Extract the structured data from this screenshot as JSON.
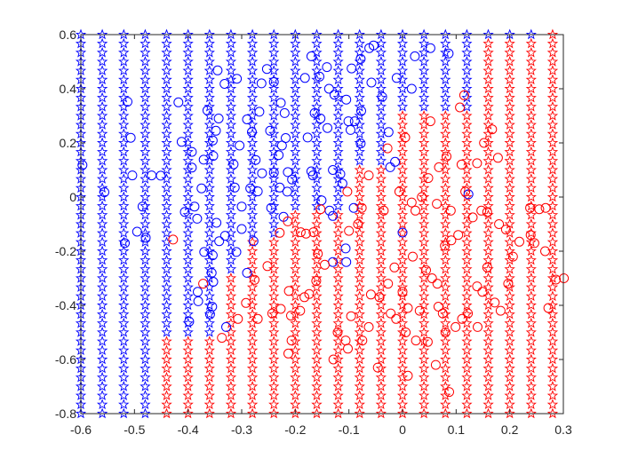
{
  "chart_data": {
    "type": "scatter",
    "title": "",
    "xlabel": "",
    "ylabel": "",
    "xlim": [
      -0.6,
      0.3
    ],
    "ylim": [
      -0.8,
      0.6
    ],
    "grid": false,
    "x_ticks": [
      "-0.6",
      "-0.5",
      "-0.4",
      "-0.3",
      "-0.2",
      "-0.1",
      "0",
      "0.1",
      "0.2",
      "0.3"
    ],
    "y_ticks": [
      "-0.8",
      "-0.6",
      "-0.4",
      "-0.2",
      "0",
      "0.2",
      "0.4",
      "0.6"
    ],
    "colors": {
      "blue": "#0000ff",
      "red": "#ff0000",
      "axis": "#262626"
    },
    "grid_stars": {
      "marker": "star",
      "x_start": -0.6,
      "x_step": 0.04,
      "x_count": 23,
      "y_start": -0.8,
      "y_step": 0.03333,
      "y_count": 43,
      "classes": [
        "blue",
        "red"
      ]
    },
    "samples": {
      "marker": "circle",
      "blue": [
        [
          -0.597,
          0.118
        ],
        [
          -0.513,
          0.352
        ],
        [
          -0.507,
          0.219
        ],
        [
          -0.504,
          0.08
        ],
        [
          -0.485,
          -0.035
        ],
        [
          -0.495,
          -0.128
        ],
        [
          -0.479,
          -0.15
        ],
        [
          -0.518,
          -0.17
        ],
        [
          -0.468,
          0.08
        ],
        [
          -0.451,
          0.079
        ],
        [
          -0.556,
          0.018
        ],
        [
          -0.418,
          0.35
        ],
        [
          -0.412,
          0.204
        ],
        [
          -0.393,
          0.167
        ],
        [
          -0.393,
          0.109
        ],
        [
          -0.388,
          -0.035
        ],
        [
          -0.406,
          -0.055
        ],
        [
          -0.383,
          -0.08
        ],
        [
          -0.375,
          0.032
        ],
        [
          -0.371,
          0.138
        ],
        [
          -0.364,
          0.32
        ],
        [
          -0.354,
          0.209
        ],
        [
          -0.353,
          0.152
        ],
        [
          -0.348,
          0.245
        ],
        [
          -0.343,
          0.29
        ],
        [
          -0.347,
          -0.095
        ],
        [
          -0.331,
          -0.143
        ],
        [
          -0.342,
          -0.163
        ],
        [
          -0.37,
          -0.203
        ],
        [
          -0.354,
          -0.215
        ],
        [
          -0.356,
          -0.28
        ],
        [
          -0.353,
          -0.313
        ],
        [
          -0.382,
          -0.35
        ],
        [
          -0.355,
          -0.405
        ],
        [
          -0.381,
          -0.385
        ],
        [
          -0.398,
          -0.46
        ],
        [
          -0.359,
          -0.433
        ],
        [
          -0.329,
          -0.48
        ],
        [
          -0.345,
          0.468
        ],
        [
          -0.332,
          0.418
        ],
        [
          -0.309,
          0.437
        ],
        [
          -0.29,
          0.287
        ],
        [
          -0.304,
          0.19
        ],
        [
          -0.315,
          0.121
        ],
        [
          -0.313,
          0.035
        ],
        [
          -0.3,
          -0.035
        ],
        [
          -0.3,
          -0.118
        ],
        [
          -0.31,
          -0.203
        ],
        [
          -0.29,
          -0.28
        ],
        [
          -0.278,
          -0.163
        ],
        [
          -0.262,
          0.088
        ],
        [
          -0.27,
          0.021
        ],
        [
          -0.284,
          0.032
        ],
        [
          -0.274,
          0.137
        ],
        [
          -0.281,
          0.24
        ],
        [
          -0.267,
          0.315
        ],
        [
          -0.263,
          0.42
        ],
        [
          -0.253,
          0.473
        ],
        [
          -0.24,
          0.425
        ],
        [
          -0.22,
          0.31
        ],
        [
          -0.227,
          0.348
        ],
        [
          -0.24,
          0.09
        ],
        [
          -0.229,
          0.035
        ],
        [
          -0.215,
          0.02
        ],
        [
          -0.206,
          0.065
        ],
        [
          -0.214,
          0.092
        ],
        [
          -0.218,
          0.218
        ],
        [
          -0.225,
          0.19
        ],
        [
          -0.247,
          0.245
        ],
        [
          -0.231,
          0.155
        ],
        [
          -0.245,
          -0.04
        ],
        [
          -0.222,
          -0.073
        ],
        [
          -0.177,
          0.22
        ],
        [
          -0.164,
          0.31
        ],
        [
          -0.182,
          0.44
        ],
        [
          -0.17,
          0.52
        ],
        [
          -0.155,
          0.445
        ],
        [
          -0.141,
          0.48
        ],
        [
          -0.137,
          0.4
        ],
        [
          -0.127,
          0.378
        ],
        [
          -0.153,
          0.29
        ],
        [
          -0.14,
          0.255
        ],
        [
          -0.13,
          0.1
        ],
        [
          -0.151,
          -0.012
        ],
        [
          -0.136,
          -0.05
        ],
        [
          -0.167,
          0.08
        ],
        [
          -0.17,
          0.095
        ],
        [
          -0.116,
          0.085
        ],
        [
          -0.112,
          0.05
        ],
        [
          -0.097,
          0.248
        ],
        [
          -0.101,
          0.28
        ],
        [
          -0.077,
          0.318
        ],
        [
          -0.089,
          0.28
        ],
        [
          -0.078,
          0.198
        ],
        [
          -0.105,
          0.36
        ],
        [
          -0.095,
          0.475
        ],
        [
          -0.078,
          0.51
        ],
        [
          -0.062,
          0.55
        ],
        [
          -0.054,
          0.56
        ],
        [
          -0.058,
          0.423
        ],
        [
          -0.038,
          0.37
        ],
        [
          -0.023,
          0.11
        ],
        [
          -0.026,
          0.24
        ],
        [
          -0.014,
          0.13
        ],
        [
          0.0,
          -0.131
        ],
        [
          -0.011,
          0.44
        ],
        [
          0.017,
          0.4
        ],
        [
          0.023,
          0.52
        ],
        [
          0.052,
          0.55
        ],
        [
          0.086,
          0.53
        ],
        [
          0.123,
          0.01
        ],
        [
          -0.13,
          -0.24
        ],
        [
          -0.105,
          -0.24
        ],
        [
          -0.106,
          -0.19
        ],
        [
          -0.091,
          -0.04
        ],
        [
          -0.13,
          -0.07
        ]
      ],
      "red": [
        [
          -0.428,
          -0.157
        ],
        [
          -0.372,
          -0.32
        ],
        [
          -0.337,
          -0.52
        ],
        [
          -0.307,
          -0.45
        ],
        [
          -0.292,
          -0.391
        ],
        [
          -0.276,
          -0.306
        ],
        [
          -0.27,
          -0.45
        ],
        [
          -0.252,
          -0.255
        ],
        [
          -0.243,
          -0.43
        ],
        [
          -0.227,
          -0.413
        ],
        [
          -0.212,
          -0.347
        ],
        [
          -0.208,
          -0.438
        ],
        [
          -0.207,
          -0.53
        ],
        [
          -0.213,
          -0.578
        ],
        [
          -0.229,
          -0.132
        ],
        [
          -0.191,
          -0.42
        ],
        [
          -0.174,
          -0.358
        ],
        [
          -0.183,
          -0.37
        ],
        [
          -0.161,
          -0.31
        ],
        [
          -0.158,
          -0.21
        ],
        [
          -0.166,
          -0.13
        ],
        [
          -0.145,
          -0.25
        ],
        [
          -0.129,
          -0.6
        ],
        [
          -0.121,
          -0.5
        ],
        [
          -0.102,
          -0.56
        ],
        [
          -0.106,
          -0.53
        ],
        [
          -0.096,
          -0.44
        ],
        [
          -0.075,
          -0.53
        ],
        [
          -0.063,
          -0.48
        ],
        [
          -0.059,
          -0.36
        ],
        [
          -0.043,
          -0.37
        ],
        [
          -0.027,
          -0.32
        ],
        [
          -0.022,
          -0.43
        ],
        [
          0.01,
          -0.41
        ],
        [
          0.006,
          -0.5
        ],
        [
          0.019,
          -0.22
        ],
        [
          0.032,
          -0.42
        ],
        [
          0.044,
          -0.27
        ],
        [
          0.055,
          -0.3
        ],
        [
          0.065,
          -0.32
        ],
        [
          0.075,
          -0.43
        ],
        [
          0.08,
          -0.5
        ],
        [
          0.099,
          -0.48
        ],
        [
          0.111,
          -0.45
        ],
        [
          0.122,
          -0.43
        ],
        [
          0.139,
          -0.33
        ],
        [
          0.149,
          -0.35
        ],
        [
          0.158,
          -0.26
        ],
        [
          0.172,
          -0.39
        ],
        [
          0.183,
          -0.42
        ],
        [
          0.197,
          -0.32
        ],
        [
          0.206,
          -0.22
        ],
        [
          0.218,
          -0.165
        ],
        [
          0.239,
          -0.14
        ],
        [
          0.246,
          -0.17
        ],
        [
          0.266,
          -0.2
        ],
        [
          0.286,
          -0.305
        ],
        [
          0.301,
          -0.3
        ],
        [
          0.272,
          -0.41
        ],
        [
          0.267,
          -0.04
        ],
        [
          0.255,
          -0.045
        ],
        [
          0.238,
          -0.04
        ],
        [
          0.193,
          -0.12
        ],
        [
          0.18,
          -0.1
        ],
        [
          0.158,
          -0.055
        ],
        [
          0.147,
          -0.05
        ],
        [
          0.131,
          -0.075
        ],
        [
          0.117,
          0.02
        ],
        [
          0.11,
          0.12
        ],
        [
          0.139,
          0.125
        ],
        [
          0.152,
          0.2
        ],
        [
          0.178,
          0.145
        ],
        [
          0.167,
          0.25
        ],
        [
          0.115,
          0.376
        ],
        [
          0.107,
          0.331
        ],
        [
          0.082,
          0.15
        ],
        [
          0.068,
          0.11
        ],
        [
          0.052,
          0.28
        ],
        [
          0.048,
          0.07
        ],
        [
          0.036,
          0.0
        ],
        [
          0.024,
          -0.05
        ],
        [
          0.017,
          -0.02
        ],
        [
          0.005,
          0.22
        ],
        [
          -0.006,
          0.02
        ],
        [
          -0.028,
          0.18
        ],
        [
          -0.035,
          -0.05
        ],
        [
          -0.063,
          0.08
        ],
        [
          -0.076,
          -0.04
        ],
        [
          -0.083,
          -0.1
        ],
        [
          -0.103,
          0.02
        ],
        [
          -0.1,
          -0.125
        ],
        [
          -0.153,
          -0.045
        ],
        [
          -0.18,
          -0.135
        ],
        [
          -0.19,
          -0.13
        ],
        [
          -0.214,
          -0.09
        ],
        [
          0.064,
          -0.025
        ],
        [
          0.09,
          -0.05
        ],
        [
          0.091,
          -0.16
        ],
        [
          0.079,
          -0.18
        ],
        [
          0.025,
          -0.53
        ],
        [
          0.047,
          -0.535
        ],
        [
          0.0,
          -0.35
        ],
        [
          -0.015,
          -0.26
        ],
        [
          -0.012,
          -0.45
        ],
        [
          0.067,
          -0.405
        ],
        [
          0.14,
          -0.48
        ],
        [
          0.104,
          -0.14
        ],
        [
          0.062,
          -0.62
        ],
        [
          0.087,
          -0.72
        ],
        [
          0.01,
          -0.66
        ],
        [
          -0.046,
          -0.63
        ]
      ]
    }
  }
}
